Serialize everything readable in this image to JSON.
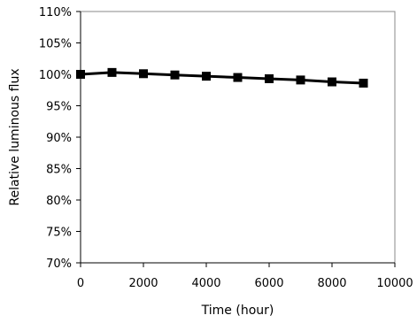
{
  "chart_data": {
    "type": "line",
    "xlabel": "Time (hour)",
    "ylabel": "Relative luminous flux",
    "xlim": [
      0,
      10000
    ],
    "ylim": [
      70,
      110
    ],
    "x_ticks": [
      0,
      2000,
      4000,
      6000,
      8000,
      10000
    ],
    "y_ticks": [
      70,
      75,
      80,
      85,
      90,
      95,
      100,
      105,
      110
    ],
    "y_tick_suffix": "%",
    "grid": false,
    "marker": "square",
    "line_color": "#000000",
    "series": [
      {
        "x": [
          0,
          1000,
          2000,
          3000,
          4000,
          5000,
          6000,
          7000,
          8000,
          9000
        ],
        "y": [
          100.0,
          100.3,
          100.1,
          99.9,
          99.7,
          99.5,
          99.3,
          99.1,
          98.8,
          98.6
        ]
      }
    ]
  }
}
